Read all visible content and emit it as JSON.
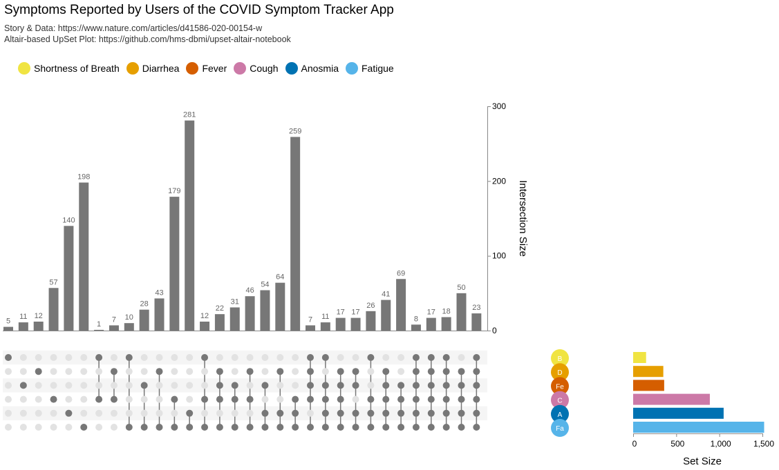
{
  "title": "Symptoms Reported by Users of the COVID Symptom Tracker App",
  "subtitle_lines": [
    "Story & Data: https://www.nature.com/articles/d41586-020-00154-w",
    "Altair-based UpSet Plot: https://github.com/hms-dbmi/upset-altair-notebook"
  ],
  "colors": {
    "bar": "#777777",
    "dot_active": "#777777",
    "dot_inactive": "#e2e2e2",
    "stripe": "#f5f5f5"
  },
  "chart_data": [
    {
      "type": "bar",
      "name": "intersections",
      "ylabel": "Intersection Size",
      "ylim": [
        0,
        300
      ],
      "yticks": [
        0,
        100,
        200,
        300
      ],
      "values": [
        5,
        11,
        12,
        57,
        140,
        198,
        1,
        7,
        10,
        28,
        43,
        179,
        281,
        12,
        22,
        31,
        46,
        54,
        64,
        259,
        7,
        11,
        17,
        17,
        26,
        41,
        69,
        8,
        17,
        18,
        50,
        23
      ],
      "memberships": [
        [
          "Shortness of Breath"
        ],
        [
          "Fever"
        ],
        [
          "Diarrhea"
        ],
        [
          "Cough"
        ],
        [
          "Anosmia"
        ],
        [
          "Fatigue"
        ],
        [
          "Shortness of Breath",
          "Cough"
        ],
        [
          "Diarrhea",
          "Cough"
        ],
        [
          "Shortness of Breath",
          "Fatigue"
        ],
        [
          "Fever",
          "Fatigue"
        ],
        [
          "Diarrhea",
          "Fatigue"
        ],
        [
          "Cough",
          "Fatigue"
        ],
        [
          "Anosmia",
          "Fatigue"
        ],
        [
          "Shortness of Breath",
          "Cough",
          "Fatigue"
        ],
        [
          "Diarrhea",
          "Fever",
          "Cough",
          "Fatigue"
        ],
        [
          "Fever",
          "Cough",
          "Fatigue"
        ],
        [
          "Diarrhea",
          "Cough",
          "Fatigue"
        ],
        [
          "Fever",
          "Anosmia",
          "Fatigue"
        ],
        [
          "Diarrhea",
          "Anosmia",
          "Fatigue"
        ],
        [
          "Cough",
          "Anosmia",
          "Fatigue"
        ],
        [
          "Shortness of Breath",
          "Diarrhea",
          "Fever",
          "Cough",
          "Fatigue"
        ],
        [
          "Shortness of Breath",
          "Fever",
          "Cough",
          "Anosmia",
          "Fatigue"
        ],
        [
          "Diarrhea",
          "Fever",
          "Cough",
          "Anosmia",
          "Fatigue"
        ],
        [
          "Diarrhea",
          "Fever",
          "Anosmia",
          "Fatigue"
        ],
        [
          "Shortness of Breath",
          "Cough",
          "Anosmia",
          "Fatigue"
        ],
        [
          "Diarrhea",
          "Fever",
          "Cough",
          "Anosmia",
          "Fatigue"
        ],
        [
          "Fever",
          "Cough",
          "Anosmia",
          "Fatigue"
        ],
        [
          "Shortness of Breath",
          "Diarrhea",
          "Fever",
          "Cough",
          "Anosmia",
          "Fatigue"
        ],
        [
          "Shortness of Breath",
          "Diarrhea",
          "Fever",
          "Cough",
          "Anosmia",
          "Fatigue"
        ],
        [
          "Shortness of Breath",
          "Diarrhea",
          "Fever",
          "Cough",
          "Anosmia",
          "Fatigue"
        ],
        [
          "Diarrhea",
          "Fever",
          "Cough",
          "Anosmia",
          "Fatigue"
        ],
        [
          "Shortness of Breath",
          "Diarrhea",
          "Fever",
          "Cough",
          "Anosmia",
          "Fatigue"
        ]
      ]
    },
    {
      "type": "bar",
      "orientation": "horizontal",
      "name": "set-sizes",
      "xlabel": "Set Size",
      "xlim": [
        0,
        1500
      ],
      "xticks": [
        0,
        500,
        1000,
        1500
      ],
      "xtick_labels": [
        "0",
        "500",
        "1,000",
        "1,500"
      ],
      "sets": [
        {
          "name": "Shortness of Breath",
          "abbr": "B",
          "color": "#f0e442",
          "size": 150
        },
        {
          "name": "Diarrhea",
          "abbr": "D",
          "color": "#e69f00",
          "size": 350
        },
        {
          "name": "Fever",
          "abbr": "Fe",
          "color": "#d55e00",
          "size": 360
        },
        {
          "name": "Cough",
          "abbr": "C",
          "color": "#cc79a7",
          "size": 890
        },
        {
          "name": "Anosmia",
          "abbr": "A",
          "color": "#0072b2",
          "size": 1050
        },
        {
          "name": "Fatigue",
          "abbr": "Fa",
          "color": "#56b4e9",
          "size": 1520
        }
      ]
    }
  ]
}
